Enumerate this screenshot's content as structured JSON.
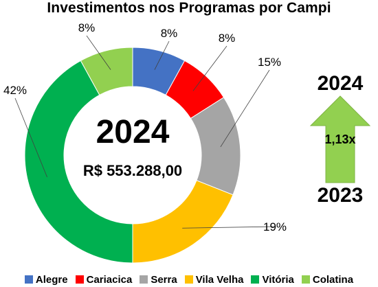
{
  "chart_data": {
    "type": "donut",
    "title": "Investimentos nos Programas por Campi",
    "center_year": "2024",
    "center_value": "R$ 553.288,00",
    "categories": [
      "Alegre",
      "Cariacica",
      "Serra",
      "Vila Velha",
      "Vitória",
      "Colatina"
    ],
    "values": [
      8,
      8,
      15,
      19,
      42,
      8
    ],
    "labels": [
      "8%",
      "8%",
      "15%",
      "19%",
      "42%",
      "8%"
    ],
    "colors": [
      "#4472C4",
      "#FF0000",
      "#A5A5A5",
      "#FFC000",
      "#00B050",
      "#92D050"
    ],
    "legend_position": "bottom"
  },
  "growth": {
    "from_year": "2023",
    "to_year": "2024",
    "factor": "1,13x",
    "arrow_color": "#92D050"
  }
}
